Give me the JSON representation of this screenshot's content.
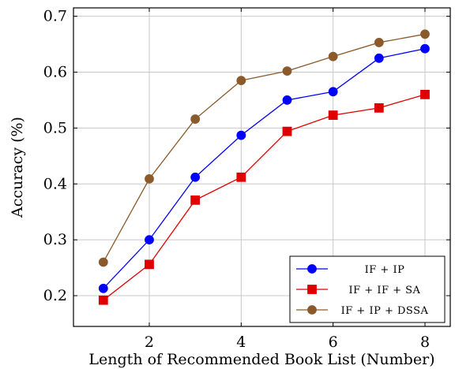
{
  "chart_data": {
    "type": "line",
    "title": "",
    "xlabel": "Length of Recommended Book List (Number)",
    "ylabel": "Accuracy (%)",
    "xlim": [
      0.35,
      8.55
    ],
    "ylim": [
      0.145,
      0.715
    ],
    "xticks": [
      2,
      4,
      6,
      8
    ],
    "yticks": [
      0.2,
      0.3,
      0.4,
      0.5,
      0.6,
      0.7
    ],
    "x_tick_labels": [
      "2",
      "4",
      "6",
      "8"
    ],
    "y_tick_labels": [
      "0.2",
      "0.3",
      "0.4",
      "0.5",
      "0.6",
      "0.7"
    ],
    "grid": true,
    "legend_position": "bottom-right",
    "x": [
      1,
      2,
      3,
      4,
      5,
      6,
      7,
      8
    ],
    "series": [
      {
        "name": "IF + IP",
        "color": "#0000ff",
        "marker": "circle",
        "values": [
          0.213,
          0.3,
          0.412,
          0.487,
          0.55,
          0.565,
          0.625,
          0.642
        ]
      },
      {
        "name": "IF + IF + SA",
        "color": "#e00000",
        "marker": "square",
        "values": [
          0.192,
          0.256,
          0.371,
          0.412,
          0.494,
          0.523,
          0.536,
          0.56
        ]
      },
      {
        "name": "IF + IP + DSSA",
        "color": "#8b5a2b",
        "marker": "circle",
        "values": [
          0.26,
          0.409,
          0.516,
          0.585,
          0.602,
          0.628,
          0.653,
          0.668
        ]
      }
    ]
  }
}
